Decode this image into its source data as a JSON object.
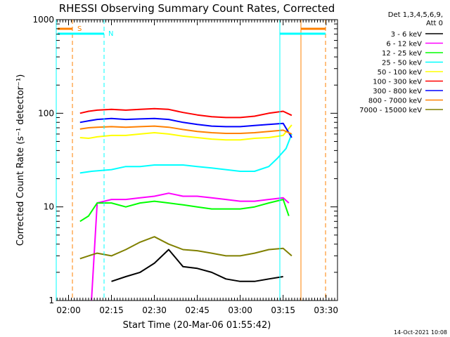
{
  "chart_data": {
    "type": "line",
    "title": "RHESSI Observing Summary Count Rates, Corrected",
    "xlabel": "Start Time (20-Mar-06 01:55:42)",
    "ylabel": "Corrected Count Rate (s⁻¹ detector⁻¹)",
    "yscale": "log",
    "ylim": [
      1,
      1000
    ],
    "xlim": [
      "01:55:42",
      "03:34:00"
    ],
    "y_ticks": [
      "1",
      "10",
      "100",
      "1000"
    ],
    "x_ticks": [
      "02:00",
      "02:15",
      "02:30",
      "02:45",
      "03:00",
      "03:15",
      "03:30"
    ],
    "legend_header": [
      "Det 1,3,4,5,6,9,",
      "Att 0"
    ],
    "legend_position": "right",
    "footer": "14-Oct-2021 10:08",
    "flags": [
      {
        "label": "S",
        "color": "#ff8000"
      },
      {
        "label": "N",
        "color": "#00ffff"
      }
    ],
    "series": [
      {
        "name": "3 - 6 keV",
        "color": "#000000",
        "x": [
          "02:15",
          "02:20",
          "02:25",
          "02:30",
          "02:35",
          "02:40",
          "02:45",
          "02:50",
          "02:55",
          "03:00",
          "03:05",
          "03:10",
          "03:15"
        ],
        "y": [
          1.6,
          1.8,
          2.0,
          2.5,
          3.5,
          2.3,
          2.2,
          2.0,
          1.7,
          1.6,
          1.6,
          1.7,
          1.8
        ]
      },
      {
        "name": "6 - 12 keV",
        "color": "#ff00ff",
        "x": [
          "02:08",
          "02:10",
          "02:15",
          "02:20",
          "02:25",
          "02:30",
          "02:35",
          "02:40",
          "02:45",
          "02:50",
          "02:55",
          "03:00",
          "03:05",
          "03:10",
          "03:15",
          "03:17"
        ],
        "y": [
          1.0,
          11,
          12,
          12,
          12.5,
          13,
          14,
          13,
          13,
          12.5,
          12,
          11.5,
          11.5,
          12,
          12.5,
          11
        ]
      },
      {
        "name": "12 - 25 keV",
        "color": "#00ff00",
        "x": [
          "02:04",
          "02:07",
          "02:10",
          "02:15",
          "02:20",
          "02:25",
          "02:30",
          "02:35",
          "02:40",
          "02:45",
          "02:50",
          "02:55",
          "03:00",
          "03:05",
          "03:10",
          "03:15",
          "03:17"
        ],
        "y": [
          7,
          8,
          11,
          11,
          10,
          11,
          11.5,
          11,
          10.5,
          10,
          9.5,
          9.5,
          9.5,
          10,
          11,
          12,
          8
        ]
      },
      {
        "name": "25 - 50 keV",
        "color": "#00ffff",
        "x": [
          "02:04",
          "02:08",
          "02:15",
          "02:20",
          "02:25",
          "02:30",
          "02:35",
          "02:40",
          "02:45",
          "02:50",
          "02:55",
          "03:00",
          "03:05",
          "03:10",
          "03:13",
          "03:16",
          "03:18"
        ],
        "y": [
          23,
          24,
          25,
          27,
          27,
          28,
          28,
          28,
          27,
          26,
          25,
          24,
          24,
          27,
          33,
          42,
          60
        ]
      },
      {
        "name": "50 - 100 keV",
        "color": "#ffff00",
        "x": [
          "02:04",
          "02:07",
          "02:10",
          "02:15",
          "02:20",
          "02:25",
          "02:30",
          "02:35",
          "02:40",
          "02:45",
          "02:50",
          "02:55",
          "03:00",
          "03:05",
          "03:10",
          "03:15",
          "03:18"
        ],
        "y": [
          55,
          54,
          56,
          58,
          58,
          60,
          62,
          60,
          57,
          55,
          53,
          52,
          52,
          54,
          55,
          58,
          75
        ]
      },
      {
        "name": "100 - 300 keV",
        "color": "#ff0000",
        "x": [
          "02:04",
          "02:07",
          "02:10",
          "02:15",
          "02:20",
          "02:25",
          "02:30",
          "02:35",
          "02:40",
          "02:45",
          "02:50",
          "02:55",
          "03:00",
          "03:05",
          "03:10",
          "03:15",
          "03:18"
        ],
        "y": [
          100,
          105,
          108,
          110,
          108,
          110,
          112,
          110,
          102,
          96,
          92,
          90,
          90,
          93,
          100,
          105,
          95
        ]
      },
      {
        "name": "300 - 800 keV",
        "color": "#0000ff",
        "x": [
          "02:04",
          "02:07",
          "02:10",
          "02:15",
          "02:20",
          "02:25",
          "02:30",
          "02:35",
          "02:40",
          "02:45",
          "02:50",
          "02:55",
          "03:00",
          "03:05",
          "03:10",
          "03:15",
          "03:18"
        ],
        "y": [
          80,
          83,
          86,
          88,
          86,
          87,
          88,
          86,
          80,
          76,
          73,
          72,
          72,
          74,
          76,
          78,
          55
        ]
      },
      {
        "name": "800 - 7000 keV",
        "color": "#ff8000",
        "x": [
          "02:04",
          "02:07",
          "02:10",
          "02:15",
          "02:20",
          "02:25",
          "02:30",
          "02:35",
          "02:40",
          "02:45",
          "02:50",
          "02:55",
          "03:00",
          "03:05",
          "03:10",
          "03:15",
          "03:18"
        ],
        "y": [
          68,
          70,
          71,
          72,
          71,
          72,
          73,
          71,
          67,
          64,
          62,
          61,
          61,
          62,
          64,
          66,
          60
        ]
      },
      {
        "name": "7000 - 15000 keV",
        "color": "#808000",
        "x": [
          "02:04",
          "02:07",
          "02:10",
          "02:15",
          "02:20",
          "02:25",
          "02:30",
          "02:35",
          "02:40",
          "02:45",
          "02:50",
          "02:55",
          "03:00",
          "03:05",
          "03:10",
          "03:15",
          "03:18"
        ],
        "y": [
          2.8,
          3.0,
          3.2,
          3.0,
          3.5,
          4.2,
          4.8,
          4.0,
          3.5,
          3.4,
          3.2,
          3.0,
          3.0,
          3.2,
          3.5,
          3.6,
          3.0
        ]
      }
    ]
  }
}
